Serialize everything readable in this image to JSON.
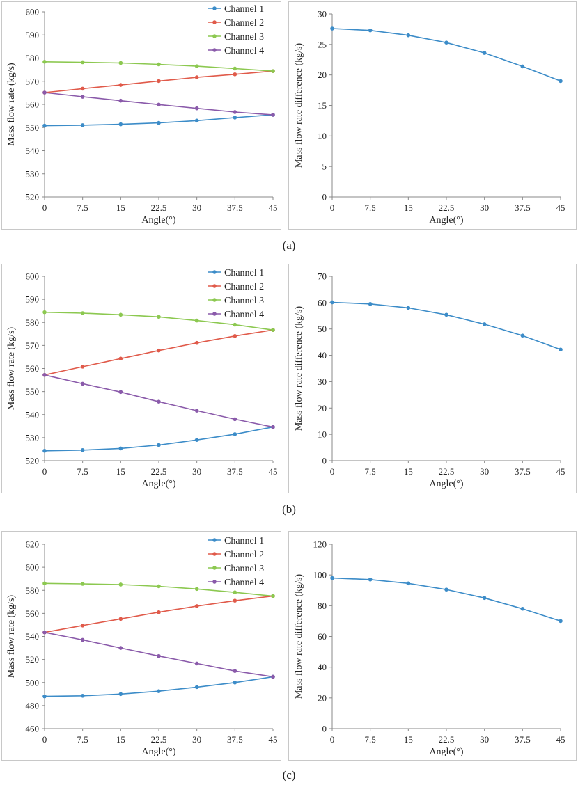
{
  "figure": {
    "panels": [
      {
        "label": "(a)"
      },
      {
        "label": "(b)"
      },
      {
        "label": "(c)"
      }
    ]
  },
  "colors": {
    "channel1": "#3c8cc8",
    "channel2": "#e05a4a",
    "channel3": "#8cc850",
    "channel4": "#8a5aaa",
    "difference": "#3c8cc8",
    "axis": "#888888",
    "frame": "#c8c8c8"
  },
  "chart_data": [
    {
      "id": "a-left",
      "type": "line",
      "panel": "(a)",
      "xlabel": "Angle(°)",
      "ylabel": "Mass flow rate  (kg/s)",
      "x": [
        0,
        7.5,
        15,
        22.5,
        30,
        37.5,
        45
      ],
      "xticks": [
        "0",
        "7.5",
        "15",
        "22.5",
        "30",
        "37.5",
        "45"
      ],
      "ylim": [
        520,
        600
      ],
      "ystep": 10,
      "legend": "top-right",
      "series": [
        {
          "name": "Channel 1",
          "color": "#3c8cc8",
          "values": [
            550.8,
            551.0,
            551.4,
            552.0,
            553.0,
            554.3,
            555.5
          ]
        },
        {
          "name": "Channel 2",
          "color": "#e05a4a",
          "values": [
            565.1,
            566.8,
            568.4,
            570.1,
            571.7,
            573.0,
            574.4
          ]
        },
        {
          "name": "Channel 3",
          "color": "#8cc850",
          "values": [
            578.4,
            578.2,
            577.9,
            577.3,
            576.5,
            575.5,
            574.4
          ]
        },
        {
          "name": "Channel 4",
          "color": "#8a5aaa",
          "values": [
            565.1,
            563.3,
            561.6,
            559.9,
            558.3,
            556.7,
            555.5
          ]
        }
      ]
    },
    {
      "id": "a-right",
      "type": "line",
      "panel": "(a)",
      "xlabel": "Angle(°)",
      "ylabel": "Mass flow rate difference  (kg/s)",
      "x": [
        0,
        7.5,
        15,
        22.5,
        30,
        37.5,
        45
      ],
      "xticks": [
        "0",
        "7.5",
        "15",
        "22.5",
        "30",
        "37.5",
        "45"
      ],
      "ylim": [
        0,
        30
      ],
      "ystep": 5,
      "series": [
        {
          "name": "Difference",
          "color": "#3c8cc8",
          "values": [
            27.6,
            27.3,
            26.5,
            25.3,
            23.6,
            21.4,
            19.0
          ]
        }
      ]
    },
    {
      "id": "b-left",
      "type": "line",
      "panel": "(b)",
      "xlabel": "Angle(°)",
      "ylabel": "Mass flow rate  (kg/s)",
      "x": [
        0,
        7.5,
        15,
        22.5,
        30,
        37.5,
        45
      ],
      "xticks": [
        "0",
        "7.5",
        "15",
        "22.5",
        "30",
        "37.5",
        "45"
      ],
      "ylim": [
        520,
        600
      ],
      "ystep": 10,
      "legend": "top-right",
      "series": [
        {
          "name": "Channel 1",
          "color": "#3c8cc8",
          "values": [
            524.3,
            524.6,
            525.3,
            526.8,
            529.0,
            531.5,
            534.6
          ]
        },
        {
          "name": "Channel 2",
          "color": "#e05a4a",
          "values": [
            557.2,
            560.8,
            564.3,
            567.8,
            571.1,
            574.1,
            576.7
          ]
        },
        {
          "name": "Channel 3",
          "color": "#8cc850",
          "values": [
            584.4,
            584.0,
            583.3,
            582.4,
            580.8,
            579.0,
            576.7
          ]
        },
        {
          "name": "Channel 4",
          "color": "#8a5aaa",
          "values": [
            557.2,
            553.4,
            549.8,
            545.6,
            541.7,
            538.0,
            534.6
          ]
        }
      ]
    },
    {
      "id": "b-right",
      "type": "line",
      "panel": "(b)",
      "xlabel": "Angle(°)",
      "ylabel": "Mass flow rate difference  (kg/s)",
      "x": [
        0,
        7.5,
        15,
        22.5,
        30,
        37.5,
        45
      ],
      "xticks": [
        "0",
        "7.5",
        "15",
        "22.5",
        "30",
        "37.5",
        "45"
      ],
      "ylim": [
        0,
        70
      ],
      "ystep": 10,
      "series": [
        {
          "name": "Difference",
          "color": "#3c8cc8",
          "values": [
            60.1,
            59.5,
            58.0,
            55.4,
            51.8,
            47.5,
            42.2
          ]
        }
      ]
    },
    {
      "id": "c-left",
      "type": "line",
      "panel": "(c)",
      "xlabel": "Angle(°)",
      "ylabel": "Mass flow rate  (kg/s)",
      "x": [
        0,
        7.5,
        15,
        22.5,
        30,
        37.5,
        45
      ],
      "xticks": [
        "0",
        "7.5",
        "15",
        "22.5",
        "30",
        "37.5",
        "45"
      ],
      "ylim": [
        460,
        620
      ],
      "ystep": 20,
      "legend": "top-right",
      "series": [
        {
          "name": "Channel 1",
          "color": "#3c8cc8",
          "values": [
            488.0,
            488.5,
            490.0,
            492.5,
            496.0,
            500.0,
            505.0
          ]
        },
        {
          "name": "Channel 2",
          "color": "#e05a4a",
          "values": [
            543.5,
            549.5,
            555.2,
            561.0,
            566.3,
            571.0,
            575.0
          ]
        },
        {
          "name": "Channel 3",
          "color": "#8cc850",
          "values": [
            586.0,
            585.6,
            585.0,
            583.5,
            581.2,
            578.2,
            575.0
          ]
        },
        {
          "name": "Channel 4",
          "color": "#8a5aaa",
          "values": [
            543.5,
            537.0,
            530.0,
            523.0,
            516.5,
            510.0,
            505.0
          ]
        }
      ]
    },
    {
      "id": "c-right",
      "type": "line",
      "panel": "(c)",
      "xlabel": "Angle(°)",
      "ylabel": "Mass flow rate difference  (kg/s)",
      "x": [
        0,
        7.5,
        15,
        22.5,
        30,
        37.5,
        45
      ],
      "xticks": [
        "0",
        "7.5",
        "15",
        "22.5",
        "30",
        "37.5",
        "45"
      ],
      "ylim": [
        0,
        120
      ],
      "ystep": 20,
      "series": [
        {
          "name": "Difference",
          "color": "#3c8cc8",
          "values": [
            98.0,
            97.0,
            94.5,
            90.5,
            85.0,
            78.0,
            70.0
          ]
        }
      ]
    }
  ]
}
